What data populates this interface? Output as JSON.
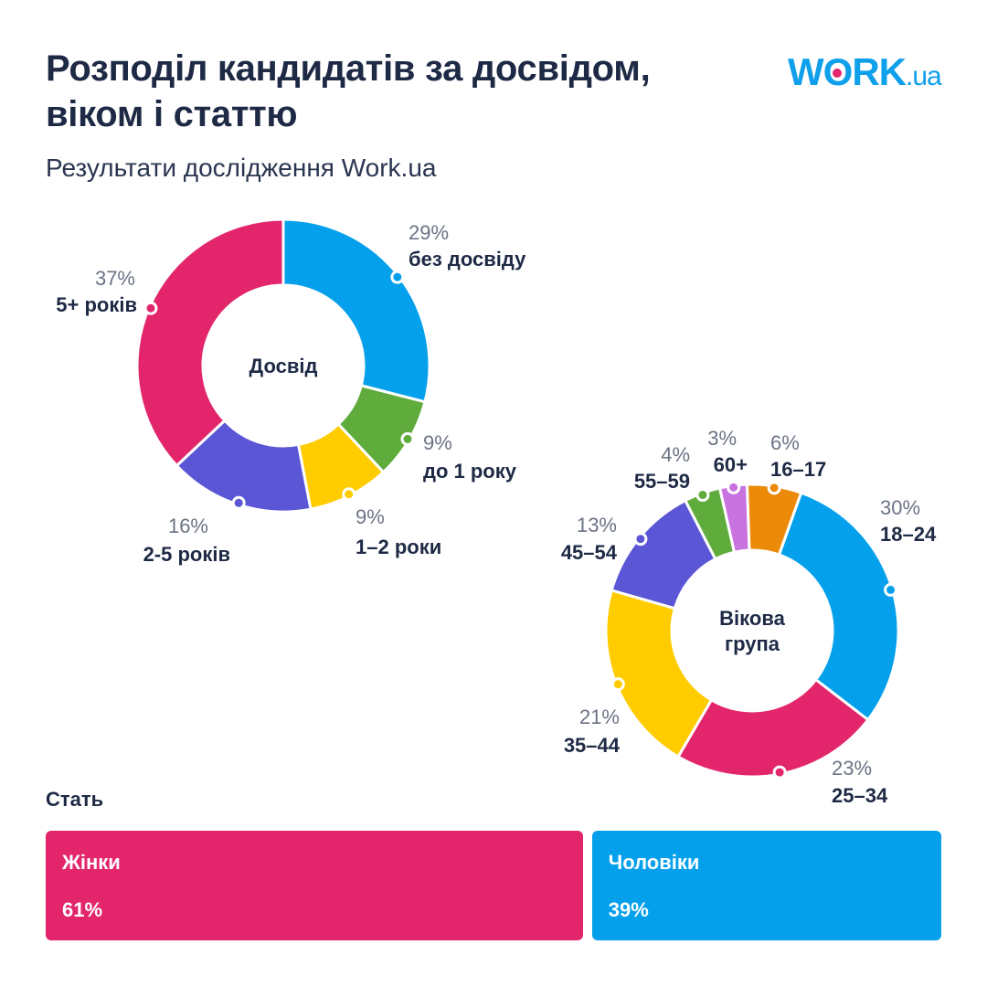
{
  "header": {
    "title_line1": "Розподіл кандидатів за досвідом,",
    "title_line2": "віком і статтю",
    "subtitle": "Результати дослідження Work.ua",
    "logo": {
      "main_before": "W",
      "main_o": "O",
      "main_after": "RK",
      "suffix": ".ua"
    }
  },
  "chart_data": [
    {
      "type": "pie",
      "variant": "donut",
      "title": "Досвід",
      "start": "top",
      "direction": "clockwise",
      "slices": [
        {
          "label": "без досвіду",
          "value": 29,
          "pct_label": "29%",
          "color": "#04a0ec"
        },
        {
          "label": "до 1 року",
          "value": 9,
          "pct_label": "9%",
          "color": "#5fab3c"
        },
        {
          "label": "1–2 роки",
          "value": 9,
          "pct_label": "9%",
          "color": "#ffcc00"
        },
        {
          "label": "2-5 років",
          "value": 16,
          "pct_label": "16%",
          "color": "#5a56d6"
        },
        {
          "label": "5+ років",
          "value": 37,
          "pct_label": "37%",
          "color": "#e3256b"
        }
      ]
    },
    {
      "type": "pie",
      "variant": "donut",
      "title": "Вікова група",
      "title_lines": [
        "Вікова",
        "група"
      ],
      "start": "top",
      "direction": "clockwise",
      "slices": [
        {
          "label": "16–17",
          "value": 6,
          "pct_label": "6%",
          "color": "#ec8a0a"
        },
        {
          "label": "18–24",
          "value": 30,
          "pct_label": "30%",
          "color": "#04a0ec"
        },
        {
          "label": "25–34",
          "value": 23,
          "pct_label": "23%",
          "color": "#e3256b"
        },
        {
          "label": "35–44",
          "value": 21,
          "pct_label": "21%",
          "color": "#ffcc00"
        },
        {
          "label": "45–54",
          "value": 13,
          "pct_label": "13%",
          "color": "#5a56d6"
        },
        {
          "label": "55–59",
          "value": 4,
          "pct_label": "4%",
          "color": "#5fab3c"
        },
        {
          "label": "60+",
          "value": 3,
          "pct_label": "3%",
          "color": "#c873e0"
        }
      ]
    },
    {
      "type": "bar",
      "variant": "stacked-100",
      "title": "Стать",
      "series": [
        {
          "name": "Жінки",
          "value": 61,
          "pct_label": "61%",
          "color": "#e3256b"
        },
        {
          "name": "Чоловіки",
          "value": 39,
          "pct_label": "39%",
          "color": "#04a0ec"
        }
      ]
    }
  ]
}
